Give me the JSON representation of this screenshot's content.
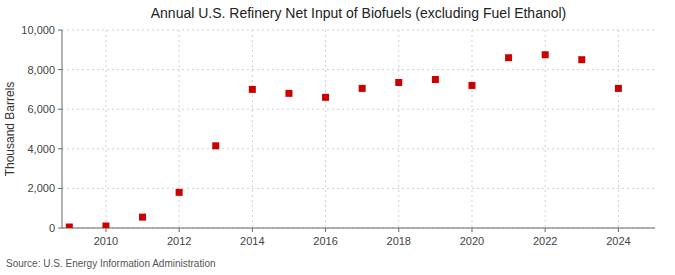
{
  "chart_data": {
    "type": "scatter",
    "title": "Annual U.S. Refinery Net Input of Biofuels (excluding Fuel Ethanol)",
    "ylabel": "Thousand Barrels",
    "source": "Source: U.S. Energy Information Administration",
    "x": [
      2009,
      2010,
      2011,
      2012,
      2013,
      2014,
      2015,
      2016,
      2017,
      2018,
      2019,
      2020,
      2021,
      2022,
      2023,
      2024
    ],
    "values": [
      50,
      100,
      550,
      1800,
      4150,
      7000,
      6800,
      6600,
      7050,
      7350,
      7500,
      7200,
      8600,
      8750,
      8500,
      7050
    ],
    "color": "#cc0000",
    "marker": "square",
    "xlim": [
      2008.8,
      2025.0
    ],
    "ylim": [
      0,
      10000
    ],
    "xticks": [
      2010,
      2012,
      2014,
      2016,
      2018,
      2020,
      2022,
      2024
    ],
    "yticks": [
      0,
      {
        "value": 2000,
        "label": "2,000"
      },
      {
        "value": 4000,
        "label": "4,000"
      },
      {
        "value": 6000,
        "label": "6,000"
      },
      {
        "value": 8000,
        "label": "8,000"
      },
      {
        "value": 10000,
        "label": "10,000"
      }
    ],
    "grid": true
  }
}
